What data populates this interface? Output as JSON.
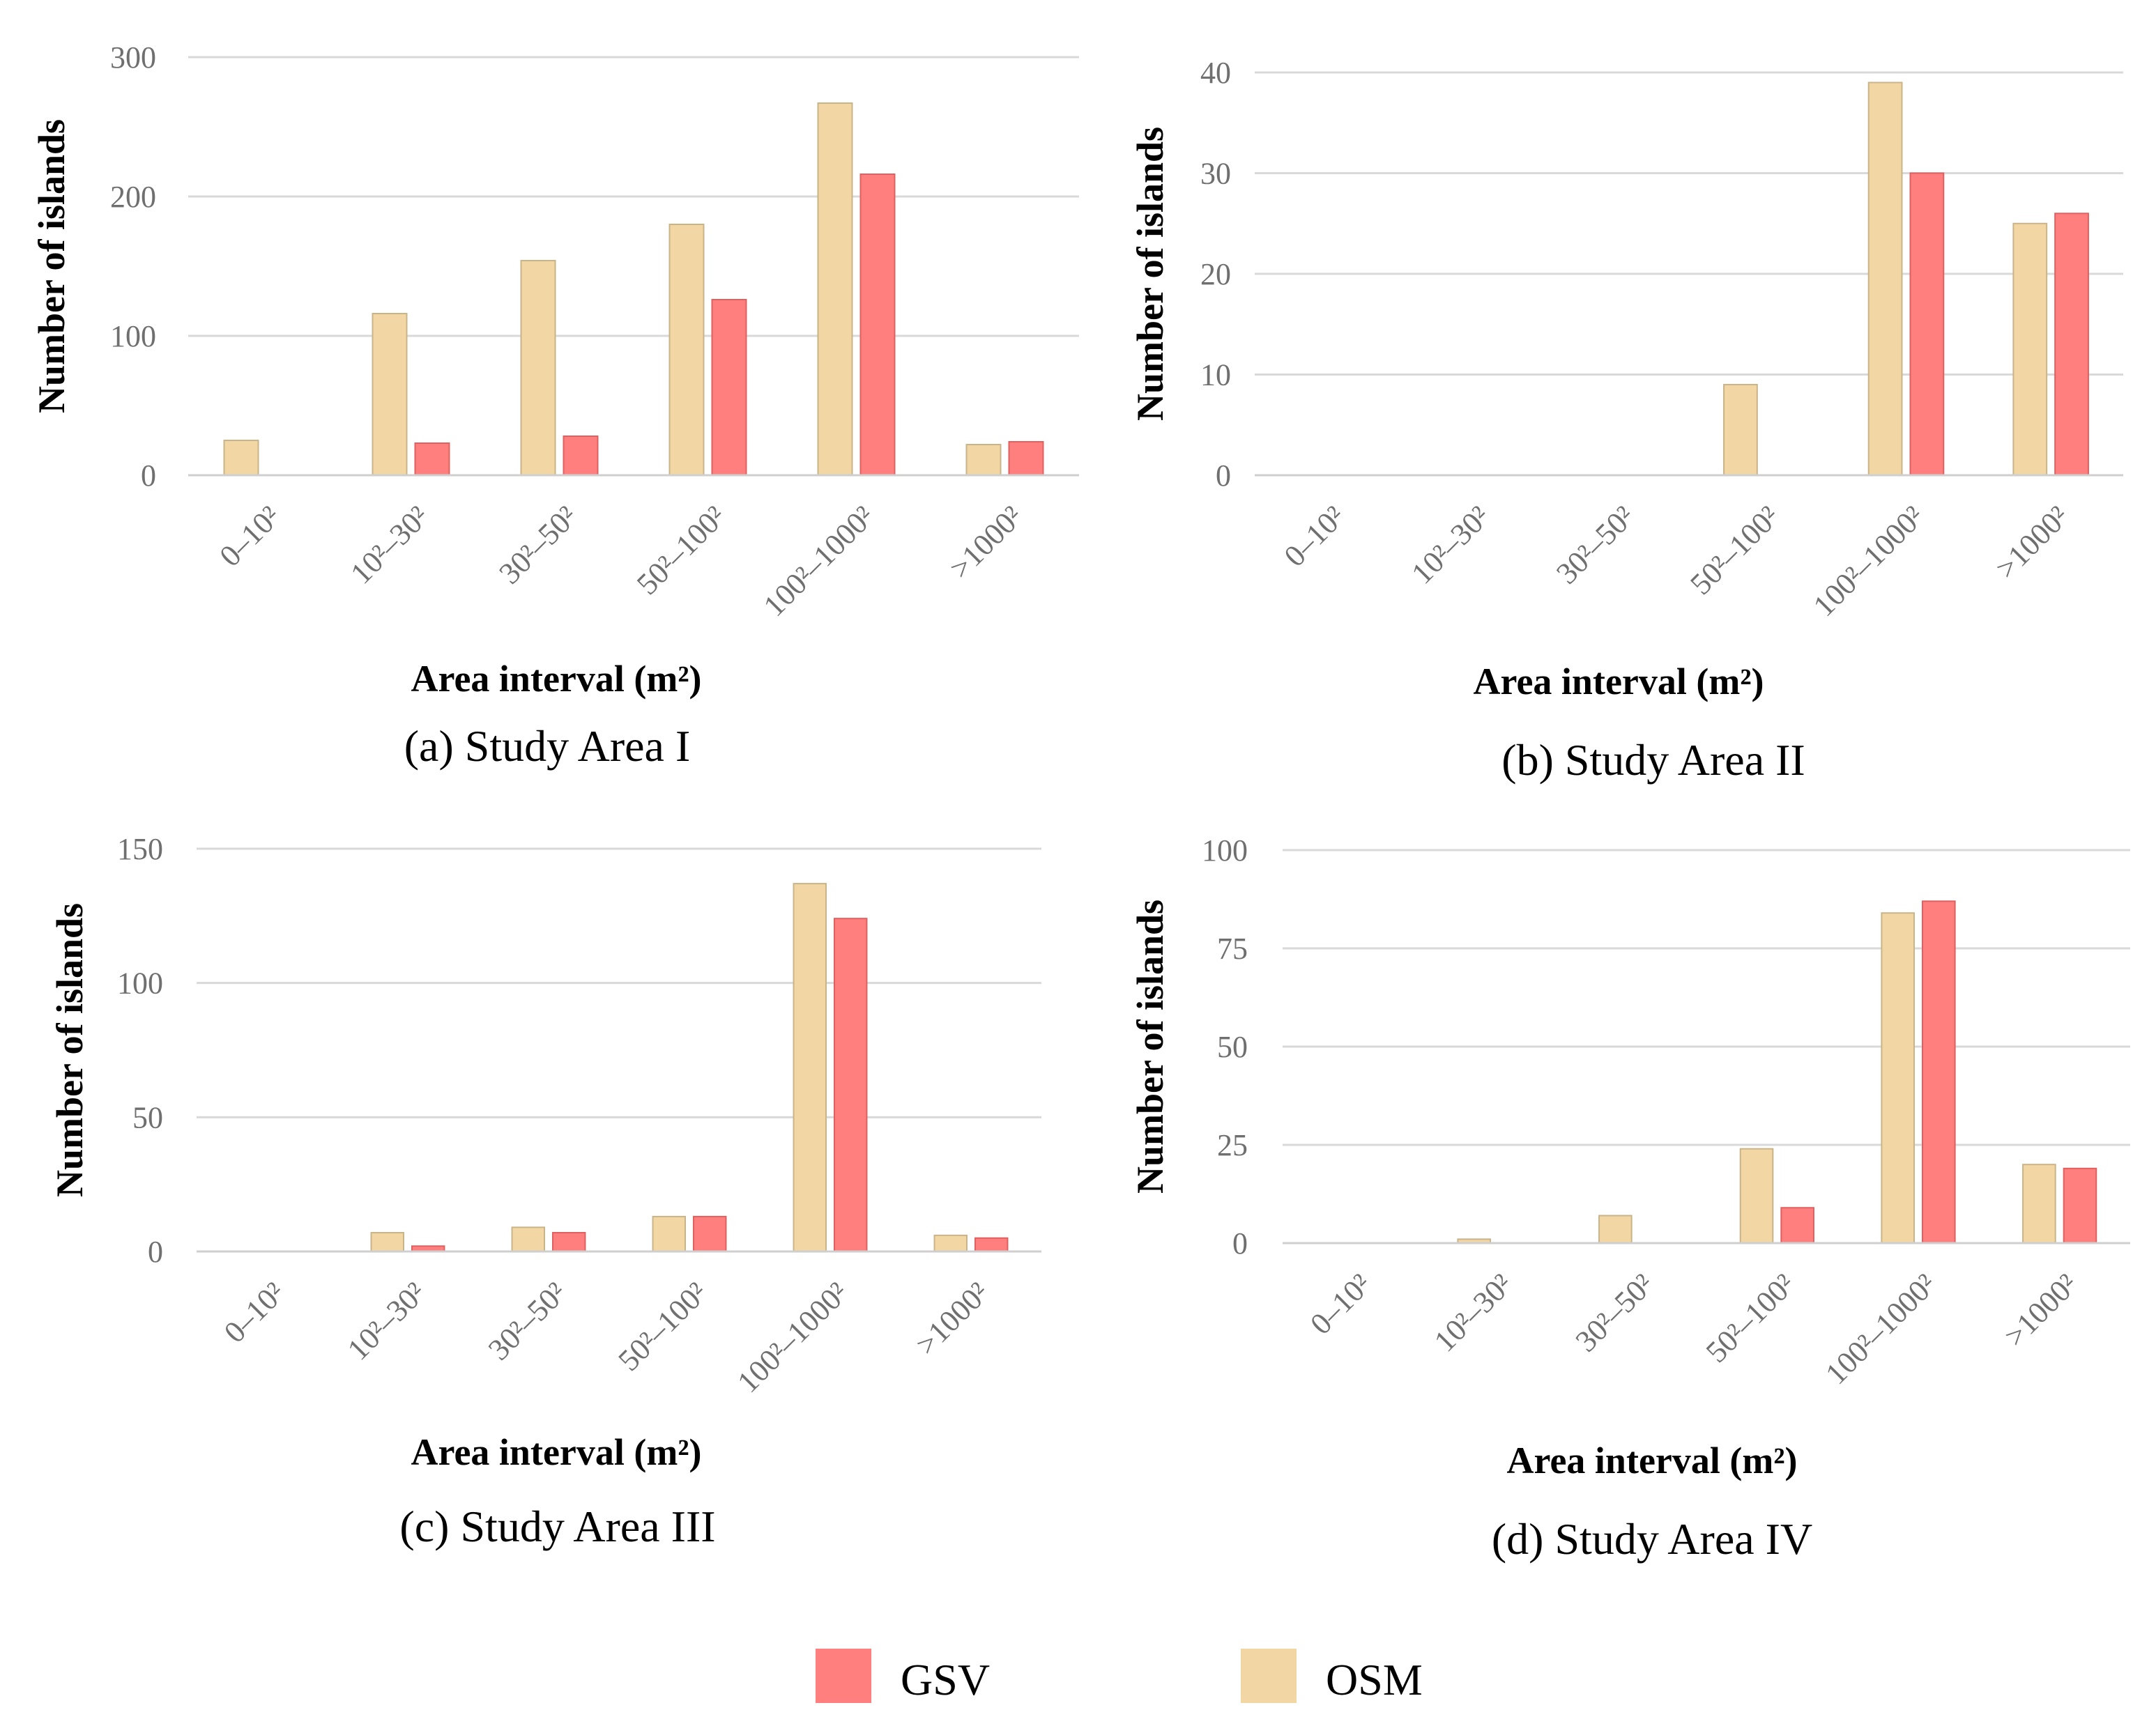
{
  "colors": {
    "gsv": "#FF7F7F",
    "osm": "#F2D7A4",
    "osm_stroke": "#C9B48A",
    "gsv_stroke": "#E06060",
    "grid": "#d9d9d9"
  },
  "legend": [
    {
      "key": "gsv",
      "label": "GSV"
    },
    {
      "key": "osm",
      "label": "OSM"
    }
  ],
  "chart_data": [
    {
      "type": "bar",
      "caption": "(a) Study Area I",
      "xlabel": "Area interval (m²)",
      "ylabel": "Number of islands",
      "categories": [
        "0–10²",
        "10²–30²",
        "30²–50²",
        "50²–100²",
        "100²–1000²",
        ">1000²"
      ],
      "yticks": [
        "0",
        "100",
        "200",
        "300"
      ],
      "ylim": [
        0,
        300
      ],
      "series": [
        {
          "name": "OSM",
          "values": [
            25,
            116,
            154,
            180,
            267,
            22
          ]
        },
        {
          "name": "GSV",
          "values": [
            0,
            23,
            28,
            126,
            216,
            24
          ]
        }
      ]
    },
    {
      "type": "bar",
      "caption": "(b)  Study Area II",
      "xlabel": "Area interval (m²)",
      "ylabel": "Number of islands",
      "categories": [
        "0–10²",
        "10²–30²",
        "30²–50²",
        "50²–100²",
        "100²–1000²",
        ">1000²"
      ],
      "yticks": [
        "0",
        "10",
        "20",
        "30",
        "40"
      ],
      "ylim": [
        0,
        40
      ],
      "series": [
        {
          "name": "OSM",
          "values": [
            0,
            0,
            0,
            9,
            39,
            25
          ]
        },
        {
          "name": "GSV",
          "values": [
            0,
            0,
            0,
            0,
            30,
            26
          ]
        }
      ]
    },
    {
      "type": "bar",
      "caption": "(c)  Study Area III",
      "xlabel": "Area interval (m²)",
      "ylabel": "Number of islands",
      "categories": [
        "0–10²",
        "10²–30²",
        "30²–50²",
        "50²–100²",
        "100²–1000²",
        ">1000²"
      ],
      "yticks": [
        "0",
        "50",
        "100",
        "150"
      ],
      "ylim": [
        0,
        150
      ],
      "series": [
        {
          "name": "OSM",
          "values": [
            0,
            7,
            9,
            13,
            137,
            6
          ]
        },
        {
          "name": "GSV",
          "values": [
            0,
            2,
            7,
            13,
            124,
            5
          ]
        }
      ]
    },
    {
      "type": "bar",
      "caption": "(d)  Study Area IV",
      "xlabel": "Area interval (m²)",
      "ylabel": "Number of islands",
      "categories": [
        "0–10²",
        "10²–30²",
        "30²–50²",
        "50²–100²",
        "100²–1000²",
        ">1000²"
      ],
      "yticks": [
        "0",
        "25",
        "50",
        "75",
        "100"
      ],
      "ylim": [
        0,
        100
      ],
      "series": [
        {
          "name": "OSM",
          "values": [
            0,
            1,
            7,
            24,
            84,
            20
          ]
        },
        {
          "name": "GSV",
          "values": [
            0,
            0,
            0,
            9,
            87,
            19
          ]
        }
      ]
    }
  ]
}
